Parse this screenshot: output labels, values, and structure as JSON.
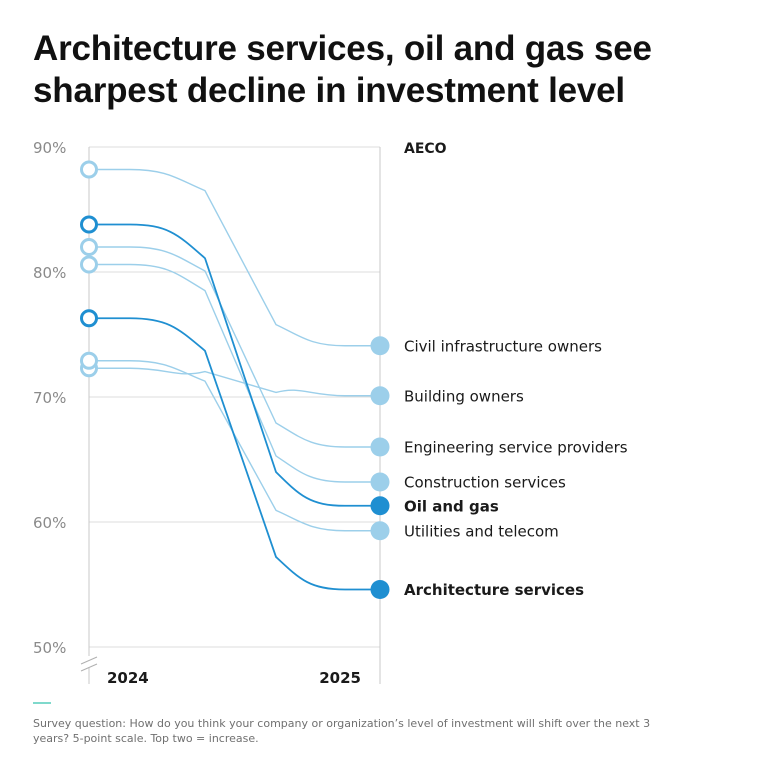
{
  "title": "Architecture services, oil and gas see sharpest decline in investment level",
  "footnote": "Survey question: How do you think your company or organization’s level of investment will shift over the next 3 years? 5-point scale. Top two = increase.",
  "colors": {
    "light": "#9ccfea",
    "dark": "#1f8fd1",
    "axis": "#c8c8c8",
    "grid": "#dcdcdc",
    "tick": "#8a8a8a"
  },
  "chart_data": {
    "type": "line",
    "subtype": "slope",
    "group_label": "AECO",
    "x": [
      "2024",
      "2025"
    ],
    "ylim": [
      50,
      90
    ],
    "yticks": [
      50,
      60,
      70,
      80,
      90
    ],
    "ytick_labels": [
      "50%",
      "60%",
      "70%",
      "80%",
      "90%"
    ],
    "grid": true,
    "series": [
      {
        "name": "Civil infrastructure owners",
        "values": [
          88.2,
          74.1
        ],
        "highlight": false
      },
      {
        "name": "Building owners",
        "values": [
          72.3,
          70.1
        ],
        "highlight": false
      },
      {
        "name": "Engineering service providers",
        "values": [
          82.0,
          66.0
        ],
        "highlight": false
      },
      {
        "name": "Construction services",
        "values": [
          80.6,
          63.2
        ],
        "highlight": false
      },
      {
        "name": "Oil and gas",
        "values": [
          83.8,
          61.3
        ],
        "highlight": true
      },
      {
        "name": "Utilities and telecom",
        "values": [
          72.9,
          59.3
        ],
        "highlight": false
      },
      {
        "name": "Architecture services",
        "values": [
          76.3,
          54.6
        ],
        "highlight": true
      }
    ]
  }
}
